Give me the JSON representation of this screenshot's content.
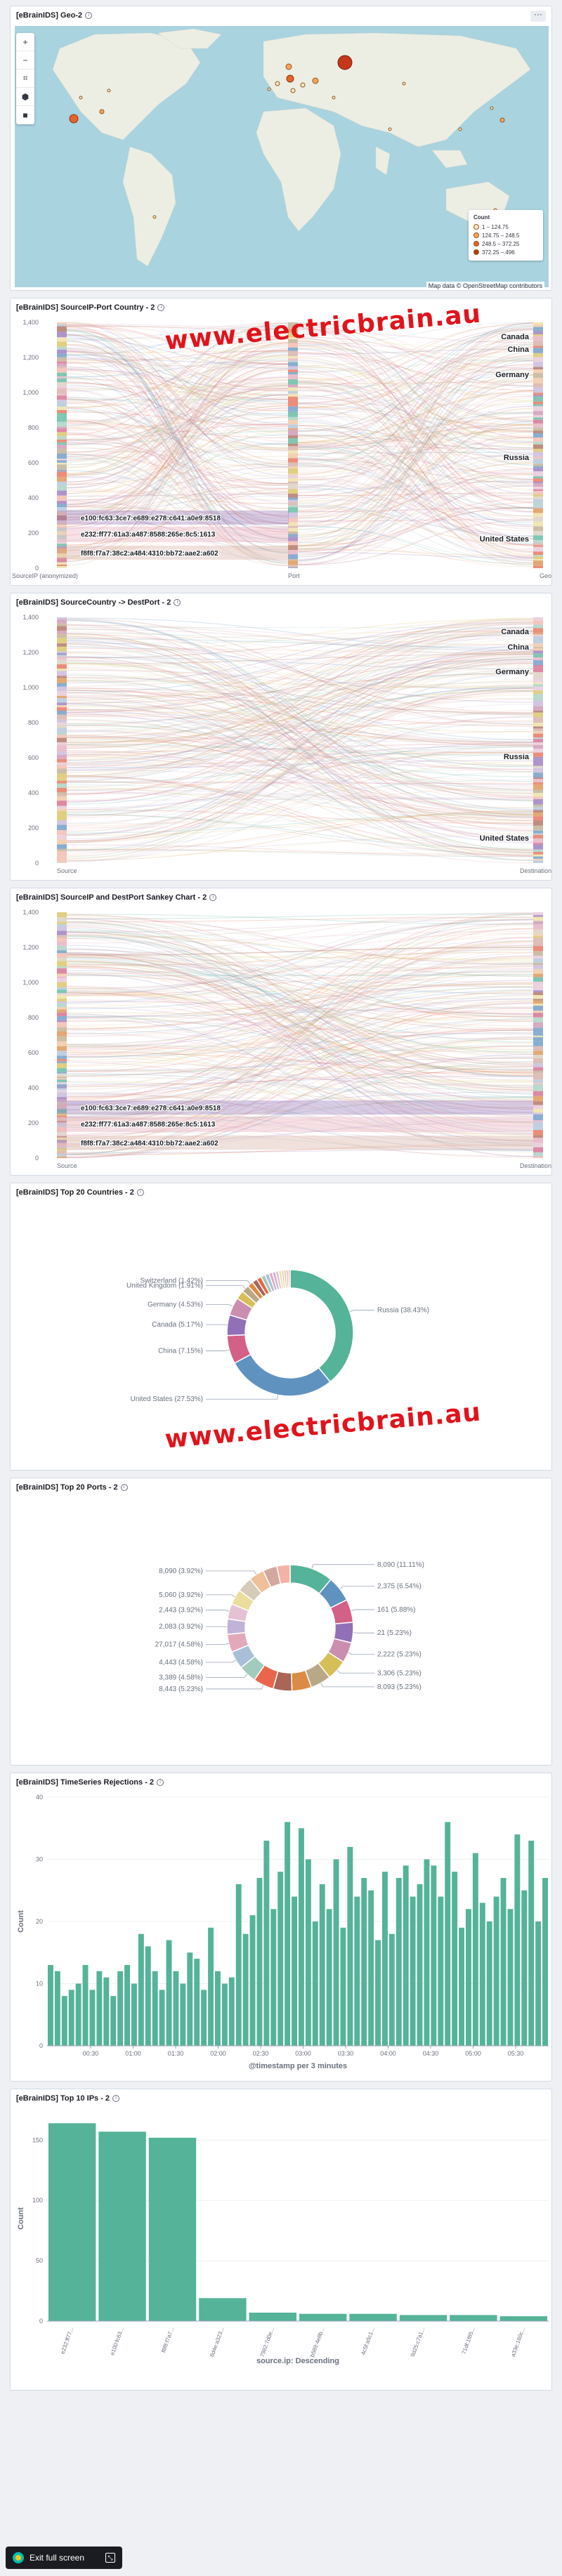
{
  "panels": {
    "geo": {
      "title": "[eBrainIDS] Geo-2"
    },
    "sankey1": {
      "title": "[eBrainIDS] SourceIP-Port Country - 2"
    },
    "sankey2": {
      "title": "[eBrainIDS] SourceCountry -> DestPort - 2"
    },
    "sankey3": {
      "title": "[eBrainIDS] SourceIP and DestPort Sankey Chart - 2"
    },
    "countries": {
      "title": "[eBrainIDS] Top 20 Countries - 2"
    },
    "ports": {
      "title": "[eBrainIDS] Top 20 Ports - 2"
    },
    "timeseries": {
      "title": "[eBrainIDS] TimeSeries Rejections - 2"
    },
    "topips": {
      "title": "[eBrainIDS] Top 10 IPs - 2"
    }
  },
  "map": {
    "legend_title": "Count",
    "legend_items": [
      "1 – 124.75",
      "124.75 – 248.5",
      "248.5 – 372.25",
      "372.25 – 496"
    ],
    "legend_colors": [
      "#fce3c7",
      "#f7a35c",
      "#e5632b",
      "#b33d14"
    ],
    "attribution": "Map data © OpenStreetMap contributors",
    "tools": [
      "plus-icon",
      "minus-icon",
      "crop-icon",
      "polygon-icon",
      "square-icon"
    ]
  },
  "watermark": "www.electricbrain.au",
  "fullscreen": {
    "label": "Exit full screen"
  },
  "sankeys": [
    {
      "id": "sankey1",
      "yticks": [
        "1,400",
        "1,200",
        "1,000",
        "800",
        "600",
        "400",
        "200",
        "0"
      ],
      "axis_labels": [
        "SourceIP (anonymized)",
        "Port",
        "Geo"
      ],
      "left_labels": [
        "e100:fc63:3ce7:e689:e278:c641:a0e9:8518",
        "e232:ff77:61a3:a487:8588:265e:8c5:1613",
        "f8f8:f7a7:38c2:a484:4310:bb72:aae2:a602"
      ],
      "right_labels": [
        "Canada",
        "China",
        "Germany",
        "Russia",
        "United States"
      ]
    },
    {
      "id": "sankey2",
      "yticks": [
        "1,400",
        "1,200",
        "1,000",
        "800",
        "600",
        "400",
        "200",
        "0"
      ],
      "axis_labels": [
        "Source",
        "Destination"
      ],
      "left_labels": [],
      "right_labels": [
        "Canada",
        "China",
        "Germany",
        "Russia",
        "United States"
      ]
    },
    {
      "id": "sankey3",
      "yticks": [
        "1,400",
        "1,200",
        "1,000",
        "800",
        "600",
        "400",
        "200",
        "0"
      ],
      "axis_labels": [
        "Source",
        "Destination"
      ],
      "left_labels": [
        "e100:fc63:3ce7:e689:e278:c641:a0e9:8518",
        "e232:ff77:61a3:a487:8588:265e:8c5:1613",
        "f8f8:f7a7:38c2:a484:4310:bb72:aae2:a602"
      ],
      "right_labels": []
    }
  ],
  "chart_data": [
    {
      "type": "pie",
      "id": "countries",
      "slices": [
        {
          "label": "Russia (38.43%)",
          "value": 38.43,
          "color": "#54b399"
        },
        {
          "label": "United States (27.53%)",
          "value": 27.53,
          "color": "#6092c0"
        },
        {
          "label": "China (7.15%)",
          "value": 7.15,
          "color": "#d36086"
        },
        {
          "label": "Canada (5.17%)",
          "value": 5.17,
          "color": "#9170b8"
        },
        {
          "label": "Germany (4.53%)",
          "value": 4.53,
          "color": "#ca8eae"
        },
        {
          "label": "",
          "value": 2.2,
          "color": "#d6bf57"
        },
        {
          "label": "United Kingdom (1.91%)",
          "value": 1.91,
          "color": "#b9a888"
        },
        {
          "label": "Switzerland (1.42%)",
          "value": 1.42,
          "color": "#da8b45"
        },
        {
          "label": "",
          "value": 1.3,
          "color": "#aa6556"
        },
        {
          "label": "",
          "value": 1.2,
          "color": "#e7664c"
        },
        {
          "label": "",
          "value": 1.1,
          "color": "#a2cbbd"
        },
        {
          "label": "",
          "value": 1.0,
          "color": "#a9bfd7"
        },
        {
          "label": "",
          "value": 0.9,
          "color": "#e4a8bb"
        },
        {
          "label": "",
          "value": 0.8,
          "color": "#c1b2d7"
        },
        {
          "label": "",
          "value": 0.8,
          "color": "#e4c2d3"
        },
        {
          "label": "",
          "value": 0.7,
          "color": "#ebdd9b"
        },
        {
          "label": "",
          "value": 0.6,
          "color": "#d6cbb8"
        },
        {
          "label": "",
          "value": 0.6,
          "color": "#efc099"
        },
        {
          "label": "",
          "value": 0.5,
          "color": "#d3a89e"
        },
        {
          "label": "",
          "value": 0.5,
          "color": "#f2b3a6"
        }
      ]
    },
    {
      "type": "pie",
      "id": "ports",
      "slices": [
        {
          "label": "8,090 (11.11%)",
          "value": 11.11,
          "color": "#54b399"
        },
        {
          "label": "2,375 (6.54%)",
          "value": 6.54,
          "color": "#6092c0"
        },
        {
          "label": "161 (5.88%)",
          "value": 5.88,
          "color": "#d36086"
        },
        {
          "label": "21 (5.23%)",
          "value": 5.23,
          "color": "#9170b8"
        },
        {
          "label": "2,222 (5.23%)",
          "value": 5.23,
          "color": "#ca8eae"
        },
        {
          "label": "3,306 (5.23%)",
          "value": 5.23,
          "color": "#d6bf57"
        },
        {
          "label": "8,093 (5.23%)",
          "value": 5.23,
          "color": "#b9a888"
        },
        {
          "label": "",
          "value": 5.0,
          "color": "#da8b45"
        },
        {
          "label": "",
          "value": 4.8,
          "color": "#aa6556"
        },
        {
          "label": "8,443 (5.23%)",
          "value": 5.23,
          "color": "#e7664c"
        },
        {
          "label": "3,389 (4.58%)",
          "value": 4.58,
          "color": "#a2cbbd"
        },
        {
          "label": "4,443 (4.58%)",
          "value": 4.58,
          "color": "#a9bfd7"
        },
        {
          "label": "27,017 (4.58%)",
          "value": 4.58,
          "color": "#e4a8bb"
        },
        {
          "label": "2,083 (3.92%)",
          "value": 3.92,
          "color": "#c1b2d7"
        },
        {
          "label": "2,443 (3.92%)",
          "value": 3.92,
          "color": "#e4c2d3"
        },
        {
          "label": "5,060 (3.92%)",
          "value": 3.92,
          "color": "#ebdd9b"
        },
        {
          "label": "",
          "value": 3.92,
          "color": "#d6cbb8"
        },
        {
          "label": "8,090 (3.92%)",
          "value": 3.92,
          "color": "#efc099"
        },
        {
          "label": "",
          "value": 3.6,
          "color": "#d3a89e"
        },
        {
          "label": "",
          "value": 3.4,
          "color": "#f2b3a6"
        }
      ]
    },
    {
      "type": "bar",
      "id": "timeseries",
      "xlabel": "@timestamp per 3 minutes",
      "ylabel": "Count",
      "ylim": [
        0,
        40
      ],
      "yticks": [
        0,
        10,
        20,
        30,
        40
      ],
      "xticks": [
        "00:30",
        "01:00",
        "01:30",
        "02:00",
        "02:30",
        "03:00",
        "03:30",
        "04:00",
        "04:30",
        "05:00",
        "05:30"
      ],
      "values": [
        13,
        12,
        8,
        9,
        10,
        13,
        9,
        12,
        11,
        8,
        12,
        13,
        10,
        18,
        16,
        12,
        9,
        17,
        12,
        10,
        15,
        14,
        9,
        19,
        12,
        10,
        11,
        26,
        18,
        21,
        27,
        33,
        22,
        28,
        36,
        24,
        35,
        30,
        20,
        26,
        22,
        30,
        19,
        32,
        24,
        27,
        25,
        17,
        28,
        18,
        27,
        29,
        24,
        26,
        30,
        29,
        24,
        36,
        28,
        19,
        22,
        31,
        23,
        20,
        24,
        27,
        22,
        34,
        25,
        33,
        20,
        27
      ]
    },
    {
      "type": "bar",
      "id": "topips",
      "xlabel": "source.ip: Descending",
      "ylabel": "Count",
      "ylim": [
        0,
        170
      ],
      "yticks": [
        0,
        50,
        100,
        150
      ],
      "categories": [
        "e232:ff77...",
        "e100:fc63...",
        "f8f8:f7a7...",
        "8d4e:a323...",
        "7982:7d0e...",
        "b589:4e8b...",
        "4c5f:a5c1...",
        "9d25:c7a1...",
        "71df:1f85...",
        "a33e:160c..."
      ],
      "values": [
        164,
        157,
        152,
        19,
        7,
        6,
        6,
        5,
        5,
        4
      ]
    }
  ]
}
